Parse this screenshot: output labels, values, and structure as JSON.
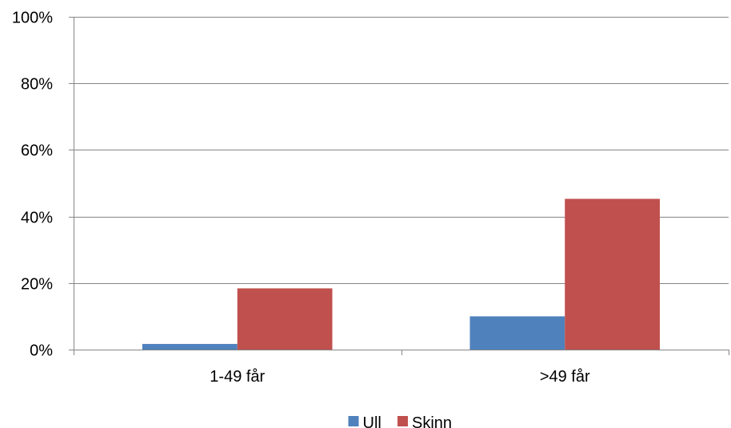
{
  "chart_data": {
    "type": "bar",
    "categories": [
      "1-49 får",
      ">49 får"
    ],
    "series": [
      {
        "name": "Ull",
        "values": [
          1.7,
          10.0
        ],
        "color": "#4F81BD"
      },
      {
        "name": "Skinn",
        "values": [
          18.4,
          45.3
        ],
        "color": "#C0504D"
      }
    ],
    "yticks": [
      0,
      20,
      40,
      60,
      80,
      100
    ],
    "ytick_labels": [
      "0%",
      "20%",
      "40%",
      "60%",
      "80%",
      "100%"
    ],
    "ylim": [
      0,
      100
    ],
    "yunit": "%",
    "grid": true,
    "legend_position": "bottom",
    "gridline_color": "#868686",
    "axis_color": "#868686"
  }
}
